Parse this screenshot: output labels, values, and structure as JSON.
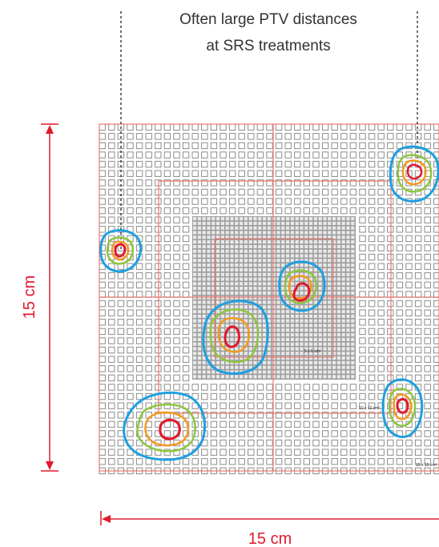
{
  "annotation": {
    "line1": "Often large PTV distances",
    "line2": "at SRS treatments"
  },
  "dimensions": {
    "vertical_label": "15 cm",
    "horizontal_label": "15 cm"
  },
  "field_labels": {
    "small": "5 x 5 cm²",
    "medium": "10 x 10 cm²",
    "large": "15 x 15 cm²"
  },
  "colors": {
    "dimension": "#e0192e",
    "field_outline": "#e8776f",
    "array_cell": "#8c8c8c",
    "inner_array_bg": "#9d9d9d",
    "isodose_outer": "#1e9fe0",
    "isodose_mid": "#8cc63f",
    "isodose_orange": "#f39a1e",
    "isodose_inner": "#e0192e",
    "guide_line": "#222222"
  },
  "targets": [
    {
      "name": "top-right-target"
    },
    {
      "name": "left-target"
    },
    {
      "name": "center-upper-target"
    },
    {
      "name": "center-lower-target"
    },
    {
      "name": "bottom-left-target"
    },
    {
      "name": "bottom-right-target"
    }
  ]
}
